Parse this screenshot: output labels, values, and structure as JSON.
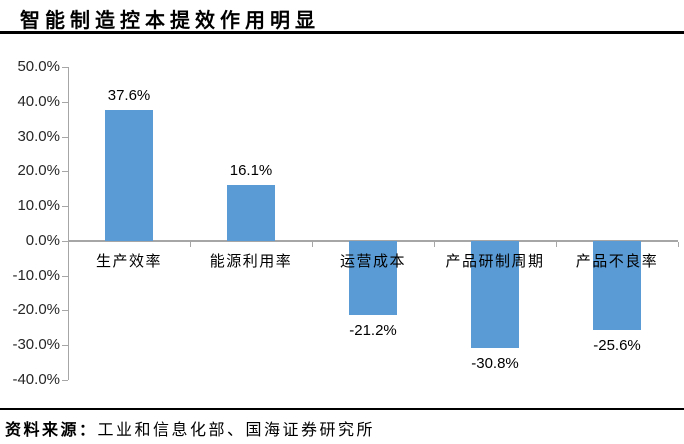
{
  "title": "智能制造控本提效作用明显",
  "source": {
    "prefix": "资料来源：",
    "text": "工业和信息化部、国海证券研究所"
  },
  "colors": {
    "bar": "#5b9bd5",
    "axis": "#a6a6a6",
    "rule": "#000000",
    "text": "#000000",
    "tick_label": "#262626"
  },
  "chart_data": {
    "type": "bar",
    "title": "智能制造控本提效作用明显",
    "categories": [
      "生产效率",
      "能源利用率",
      "运营成本",
      "产品研制周期",
      "产品不良率"
    ],
    "values": [
      37.6,
      16.1,
      -21.2,
      -30.8,
      -25.6
    ],
    "value_labels": [
      "37.6%",
      "16.1%",
      "-21.2%",
      "-30.8%",
      "-25.6%"
    ],
    "xlabel": "",
    "ylabel": "",
    "ylim": [
      -40,
      50
    ],
    "ytick_step": 10,
    "ytick_labels": [
      "50.0%",
      "40.0%",
      "30.0%",
      "20.0%",
      "10.0%",
      "0.0%",
      "-10.0%",
      "-20.0%",
      "-30.0%",
      "-40.0%"
    ],
    "grid": false,
    "legend": null,
    "data_label_position": "outside-end",
    "category_label_position": "below-zero-axis"
  }
}
